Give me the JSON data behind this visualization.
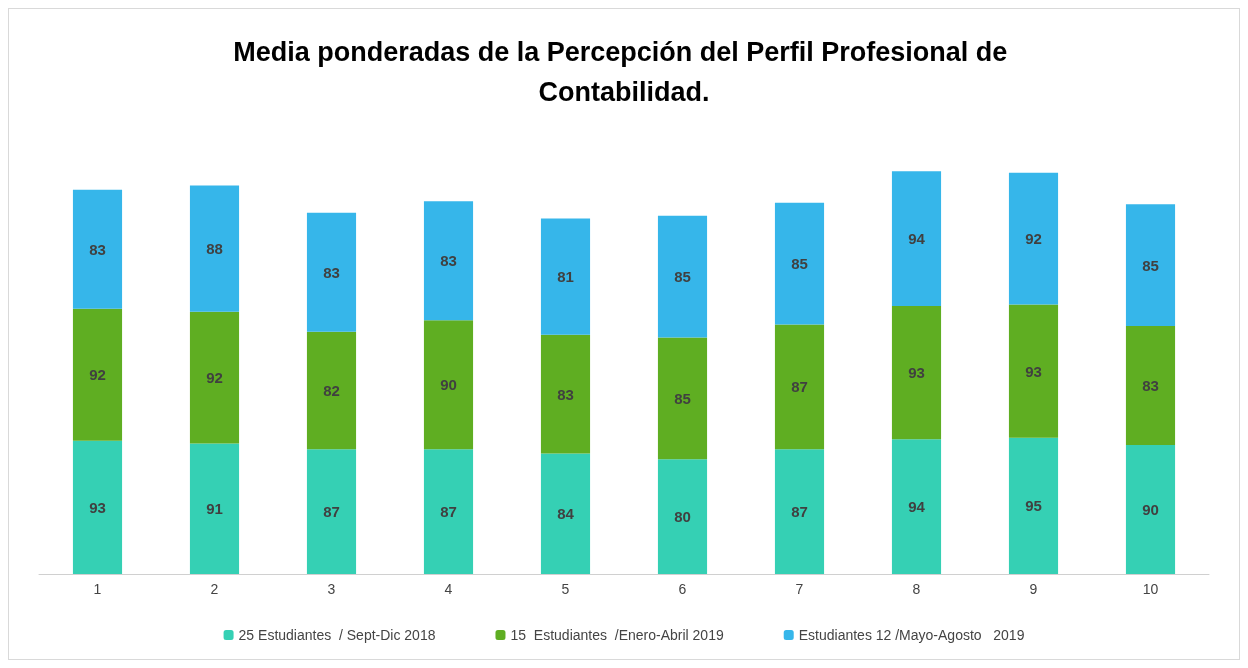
{
  "chart_data": {
    "type": "bar",
    "title": "Media ponderadas de la Percepción del Perfil Profesional de Contabilidad.",
    "categories": [
      "1",
      "2",
      "3",
      "4",
      "5",
      "6",
      "7",
      "8",
      "9",
      "10"
    ],
    "stacked": true,
    "data_labels": true,
    "legend": "bottom",
    "tick_labels": "x",
    "series": [
      {
        "name": "25 Estudiantes  / Sept-Dic 2018",
        "color": "#35d0b4",
        "values": [
          93,
          91,
          87,
          87,
          84,
          80,
          87,
          94,
          95,
          90
        ]
      },
      {
        "name": "15  Estudiantes  /Enero-Abril 2019",
        "color": "#5fae22",
        "values": [
          92,
          92,
          82,
          90,
          83,
          85,
          87,
          93,
          93,
          83
        ]
      },
      {
        "name": "Estudiantes 12 /Mayo-Agosto   2019",
        "color": "#36b6ea",
        "values": [
          83,
          88,
          83,
          83,
          81,
          85,
          85,
          94,
          92,
          85
        ]
      }
    ]
  }
}
